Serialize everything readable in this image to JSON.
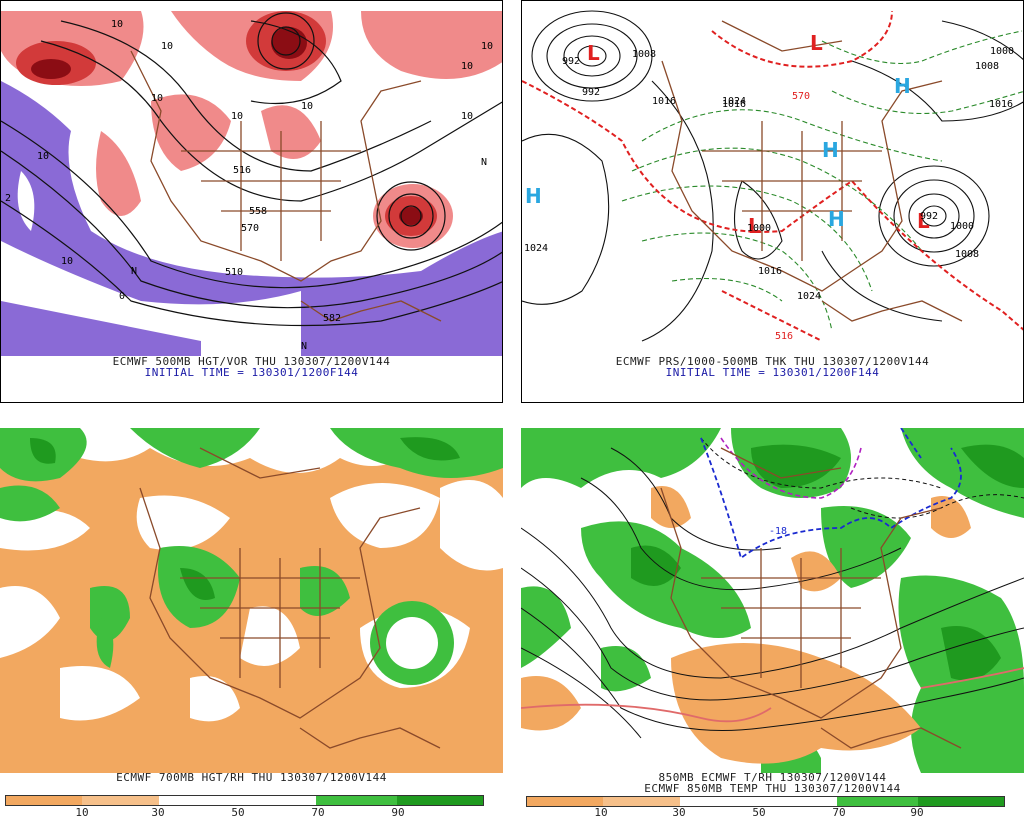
{
  "panels": {
    "top_left": {
      "caption_line1": "ECMWF 500MB HGT/VOR THU 130307/1200V144",
      "caption_line2": "INITIAL TIME = 130301/1200F144",
      "contour_labels": [
        "10",
        "10",
        "10",
        "10",
        "10",
        "10",
        "10",
        "10",
        "N",
        "N",
        "N",
        "516",
        "558",
        "570",
        "510",
        "582",
        "2",
        "0",
        "10",
        "10"
      ]
    },
    "top_right": {
      "caption_line1": "ECMWF PRS/1000-500MB THK THU 130307/1200V144",
      "caption_line2": "INITIAL TIME = 130301/1200F144",
      "high_symbol": "H",
      "low_symbol": "L",
      "contour_labels": [
        "1016",
        "1024",
        "1024",
        "1024",
        "1000",
        "1008",
        "1000",
        "1008",
        "1016",
        "1016",
        "1008",
        "1016",
        "992",
        "992",
        "516",
        "570",
        "992",
        "1000"
      ]
    },
    "bottom_left": {
      "caption_line1": "ECMWF 700MB HGT/RH THU 130307/1200V144",
      "scale_ticks": [
        "10",
        "30",
        "50",
        "70",
        "90"
      ]
    },
    "bottom_right": {
      "caption_line1": "850MB ECMWF T/RH 130307/1200V144",
      "caption_line2": "ECMWF 850MB TEMP THU 130307/1200V144",
      "contour_labels": [
        "-18"
      ],
      "scale_ticks": [
        "10",
        "30",
        "50",
        "70",
        "90"
      ]
    }
  },
  "colors": {
    "vort_dark": "#8b0d14",
    "vort_mid": "#d23a3a",
    "vort_light": "#f08a8a",
    "neg_vort": "#8a6ad6",
    "rh_dry": "#f2a860",
    "rh_moist": "#3fbf3f",
    "rh_wet": "#1f9a1f",
    "high": "#2aa7e0",
    "low": "#e02020",
    "border": "#8a4a2a",
    "thickness": "#e02020",
    "temp_green": "#2a8a2a",
    "frz_blue": "#1a2ad0"
  }
}
